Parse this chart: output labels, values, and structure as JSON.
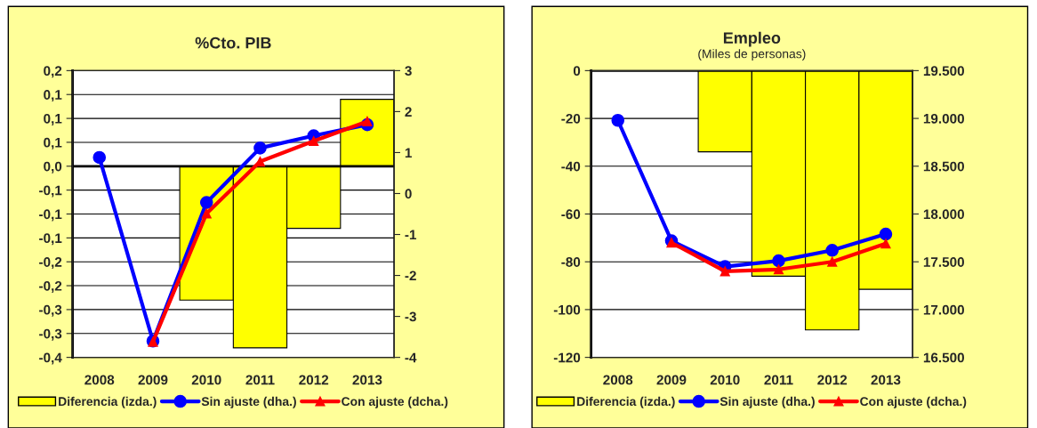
{
  "chart_data": [
    {
      "type": "bar",
      "title": "%Cto. PIB",
      "categories": [
        "2008",
        "2009",
        "2010",
        "2011",
        "2012",
        "2013"
      ],
      "series": [
        {
          "name": "Diferencia (izda.)",
          "color": "#ffff00",
          "values": [
            0,
            0,
            -0.28,
            -0.38,
            -0.13,
            0.14
          ]
        },
        {
          "name": "Sin ajuste (dha.)",
          "type": "line",
          "axis": "y2",
          "color": "#0000ff",
          "marker": "circle",
          "values": [
            0.88,
            -3.6,
            -0.22,
            1.11,
            1.41,
            1.68
          ]
        },
        {
          "name": "Con ajuste (dcha.)",
          "type": "line",
          "axis": "y2",
          "color": "#ff0000",
          "marker": "triangle",
          "values": [
            null,
            -3.62,
            -0.49,
            0.78,
            1.28,
            1.76
          ]
        }
      ],
      "ylim": [
        -0.4,
        0.2
      ],
      "yticks": [
        {
          "value": -0.4,
          "label": "-0,4"
        },
        {
          "value": -0.35,
          "label": "-0,3"
        },
        {
          "value": -0.3,
          "label": "-0,3"
        },
        {
          "value": -0.25,
          "label": "-0,2"
        },
        {
          "value": -0.2,
          "label": "-0,2"
        },
        {
          "value": -0.15,
          "label": "-0,1"
        },
        {
          "value": -0.1,
          "label": "-0,1"
        },
        {
          "value": -0.05,
          "label": "-0,1"
        },
        {
          "value": 0,
          "label": "0,0"
        },
        {
          "value": 0.05,
          "label": "0,1"
        },
        {
          "value": 0.1,
          "label": "0,1"
        },
        {
          "value": 0.15,
          "label": "0,1"
        },
        {
          "value": 0.2,
          "label": "0,2"
        }
      ],
      "y2lim": [
        -4,
        3
      ],
      "y2ticks": [
        -4,
        -3,
        -2,
        -1,
        0,
        1,
        2,
        3
      ],
      "grid": "y",
      "legend": "bottom"
    },
    {
      "type": "bar",
      "title": "Empleo",
      "subtitle": "(Miles de personas)",
      "categories": [
        "2008",
        "2009",
        "2010",
        "2011",
        "2012",
        "2013"
      ],
      "series": [
        {
          "name": "Diferencia (izda.)",
          "color": "#ffff00",
          "values": [
            0,
            0,
            -34,
            -86,
            -108.5,
            -91.5
          ]
        },
        {
          "name": "Sin ajuste (dha.)",
          "type": "line",
          "axis": "y2",
          "color": "#0000ff",
          "marker": "circle",
          "values": [
            18980,
            17720,
            17450,
            17510,
            17620,
            17790
          ]
        },
        {
          "name": "Con ajuste (dcha.)",
          "type": "line",
          "axis": "y2",
          "color": "#ff0000",
          "marker": "triangle",
          "values": [
            null,
            17700,
            17400,
            17420,
            17500,
            17690
          ]
        }
      ],
      "ylim": [
        -120,
        0
      ],
      "yticks": [
        -120,
        -100,
        -80,
        -60,
        -40,
        -20,
        0
      ],
      "y2lim": [
        16500,
        19500
      ],
      "y2ticks": [
        {
          "value": 16500,
          "label": "16.500"
        },
        {
          "value": 17000,
          "label": "17.000"
        },
        {
          "value": 17500,
          "label": "17.500"
        },
        {
          "value": 18000,
          "label": "18.000"
        },
        {
          "value": 18500,
          "label": "18.500"
        },
        {
          "value": 19000,
          "label": "19.000"
        },
        {
          "value": 19500,
          "label": "19.500"
        }
      ],
      "grid": "y",
      "legend": "bottom"
    }
  ]
}
